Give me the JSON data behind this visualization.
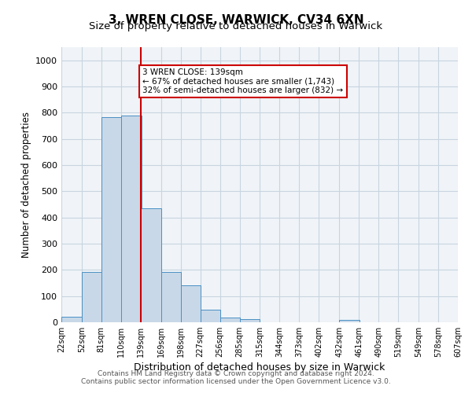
{
  "title_line1": "3, WREN CLOSE, WARWICK, CV34 6XN",
  "title_line2": "Size of property relative to detached houses in Warwick",
  "xlabel": "Distribution of detached houses by size in Warwick",
  "ylabel": "Number of detached properties",
  "bar_edges": [
    22,
    52,
    81,
    110,
    139,
    169,
    198,
    227,
    256,
    285,
    315,
    344,
    373,
    402,
    432,
    461,
    490,
    519,
    549,
    578,
    607
  ],
  "bar_heights": [
    20,
    193,
    784,
    789,
    434,
    192,
    142,
    47,
    17,
    12,
    0,
    0,
    0,
    0,
    10,
    0,
    0,
    0,
    0,
    0
  ],
  "bar_color": "#c8d8e8",
  "bar_edge_color": "#4a90c4",
  "vline_x": 139,
  "vline_color": "#cc0000",
  "annotation_text": "3 WREN CLOSE: 139sqm\n← 67% of detached houses are smaller (1,743)\n32% of semi-detached houses are larger (832) →",
  "annotation_box_color": "#ffffff",
  "annotation_box_edge_color": "#cc0000",
  "ylim": [
    0,
    1050
  ],
  "yticks": [
    0,
    100,
    200,
    300,
    400,
    500,
    600,
    700,
    800,
    900,
    1000
  ],
  "grid_color": "#c8d4e0",
  "background_color": "#f0f4f8",
  "footnote": "Contains HM Land Registry data © Crown copyright and database right 2024.\nContains public sector information licensed under the Open Government Licence v3.0.",
  "tick_labels": [
    "22sqm",
    "52sqm",
    "81sqm",
    "110sqm",
    "139sqm",
    "169sqm",
    "198sqm",
    "227sqm",
    "256sqm",
    "285sqm",
    "315sqm",
    "344sqm",
    "373sqm",
    "402sqm",
    "432sqm",
    "461sqm",
    "490sqm",
    "519sqm",
    "549sqm",
    "578sqm",
    "607sqm"
  ]
}
